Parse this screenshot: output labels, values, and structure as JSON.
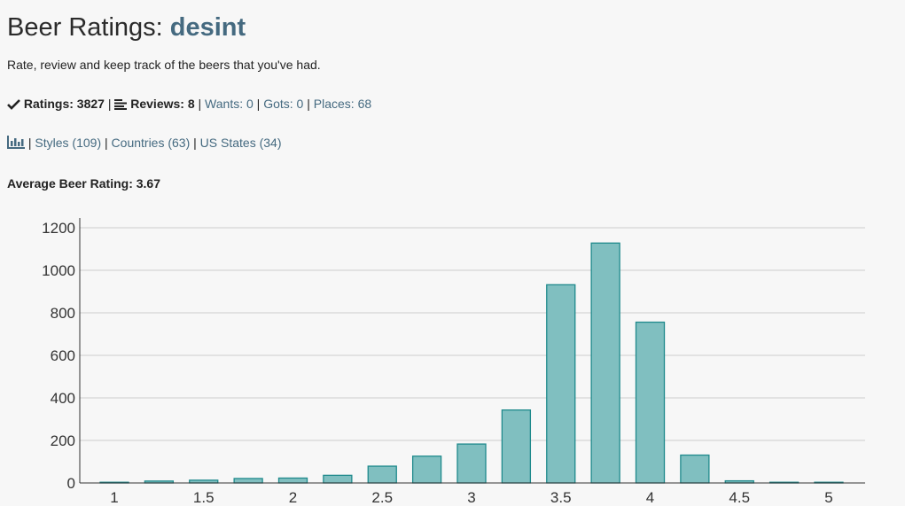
{
  "header": {
    "title_prefix": "Beer Ratings: ",
    "username": "desint",
    "subtitle": "Rate, review and keep track of the beers that you've had."
  },
  "stats": {
    "ratings_label": "Ratings: 3827",
    "reviews_label": "Reviews: 8",
    "wants_label": "Wants: 0",
    "gots_label": "Gots: 0",
    "places_label": "Places: 68",
    "separator": "|"
  },
  "links": {
    "styles_label": "Styles (109)",
    "countries_label": "Countries (63)",
    "us_states_label": "US States (34)"
  },
  "average": {
    "label": "Average Beer Rating: 3.67"
  },
  "colors": {
    "bar_fill": "#80bfc0",
    "bar_stroke": "#1f8a8c",
    "grid": "#cccccc",
    "link": "#456a80"
  },
  "chart_data": {
    "type": "bar",
    "title": "",
    "xlabel": "",
    "ylabel": "",
    "x": [
      1.0,
      1.25,
      1.5,
      1.75,
      2.0,
      2.25,
      2.5,
      2.75,
      3.0,
      3.25,
      3.5,
      3.75,
      4.0,
      4.25,
      4.5,
      4.75,
      5.0
    ],
    "values": [
      2,
      9,
      13,
      21,
      23,
      36,
      79,
      126,
      183,
      343,
      932,
      1128,
      756,
      131,
      10,
      0,
      0
    ],
    "xticks": [
      "1",
      "1.5",
      "2",
      "2.5",
      "3",
      "3.5",
      "4",
      "4.5",
      "5"
    ],
    "yticks": [
      "0",
      "200",
      "400",
      "600",
      "800",
      "1000",
      "1200"
    ],
    "ylim": [
      0,
      1200
    ],
    "xlim": [
      1,
      5
    ],
    "grid": true,
    "legend": "none"
  }
}
